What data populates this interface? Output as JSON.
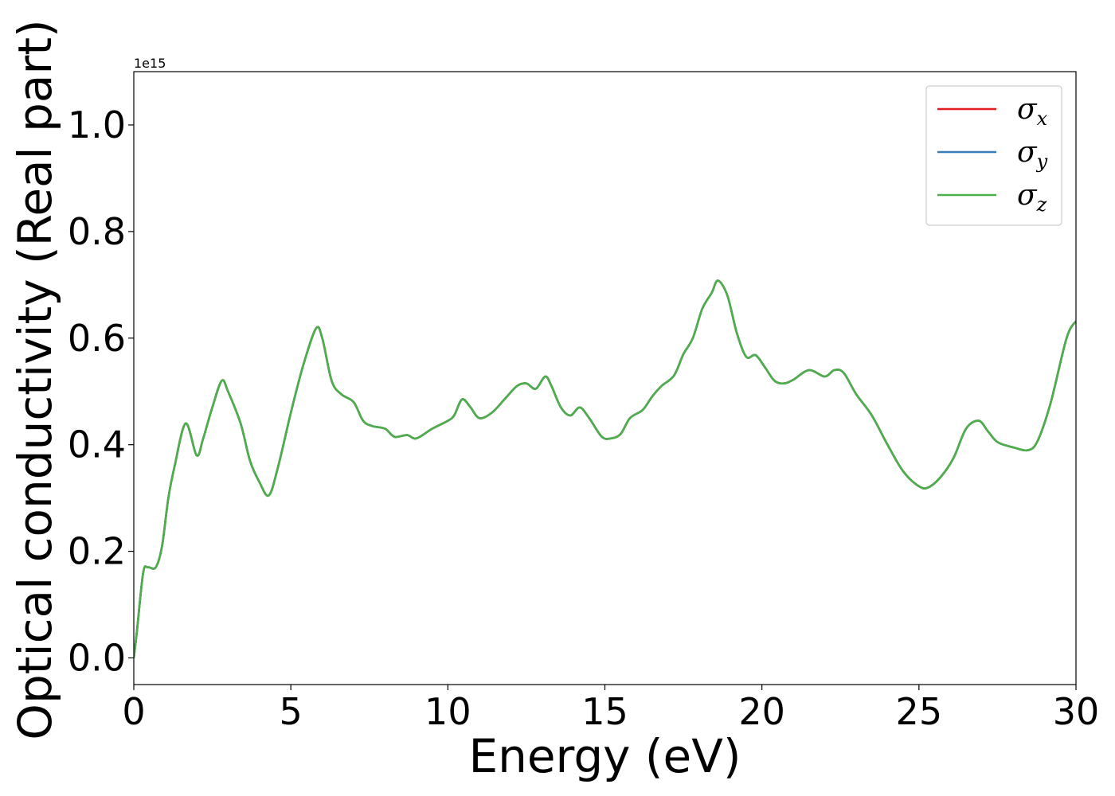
{
  "chart_data": {
    "type": "line",
    "title": "",
    "xlabel": "Energy (eV)",
    "ylabel": "Optical conductivity (Real part)",
    "y_offset_text": "1e15",
    "xlim": [
      0,
      30
    ],
    "ylim": [
      -0.05,
      1.1
    ],
    "y_scale": 1000000000000000.0,
    "x_ticks": [
      0,
      5,
      10,
      15,
      20,
      25,
      30
    ],
    "x_tick_labels": [
      "0",
      "5",
      "10",
      "15",
      "20",
      "25",
      "30"
    ],
    "y_ticks": [
      0.0,
      0.2,
      0.4,
      0.6,
      0.8,
      1.0
    ],
    "y_tick_labels": [
      "0.0",
      "0.2",
      "0.4",
      "0.6",
      "0.8",
      "1.0"
    ],
    "grid": false,
    "legend_position": "top-right",
    "series": [
      {
        "name": "σx",
        "symbol": "σ",
        "subscript": "x",
        "color": "#e41a1c",
        "x": [
          0,
          0.1,
          0.3,
          0.45,
          0.7,
          0.9,
          1.1,
          1.3,
          1.65,
          2.0,
          2.2,
          2.5,
          2.8,
          3.0,
          3.4,
          3.7,
          4.0,
          4.3,
          4.6,
          5.0,
          5.4,
          5.8,
          6.0,
          6.3,
          6.6,
          7.0,
          7.3,
          7.6,
          8.0,
          8.3,
          8.7,
          9.0,
          9.5,
          10.0,
          10.2,
          10.45,
          10.7,
          11.0,
          11.4,
          11.8,
          12.2,
          12.5,
          12.8,
          13.1,
          13.3,
          13.6,
          13.9,
          14.2,
          14.5,
          14.9,
          15.2,
          15.5,
          15.8,
          16.2,
          16.5,
          16.8,
          17.2,
          17.5,
          17.8,
          18.1,
          18.4,
          18.6,
          18.9,
          19.2,
          19.5,
          19.8,
          20.1,
          20.4,
          20.7,
          21.0,
          21.5,
          22.0,
          22.3,
          22.6,
          23.0,
          23.5,
          24.0,
          24.5,
          25.0,
          25.3,
          25.7,
          26.1,
          26.5,
          26.9,
          27.2,
          27.5,
          28.0,
          28.5,
          28.8,
          29.2,
          29.7,
          30.0
        ],
        "y": [
          0.0,
          0.05,
          0.16,
          0.17,
          0.17,
          0.21,
          0.3,
          0.36,
          0.44,
          0.38,
          0.41,
          0.47,
          0.52,
          0.5,
          0.44,
          0.37,
          0.33,
          0.305,
          0.36,
          0.46,
          0.55,
          0.618,
          0.6,
          0.52,
          0.495,
          0.48,
          0.445,
          0.435,
          0.43,
          0.415,
          0.418,
          0.412,
          0.43,
          0.445,
          0.455,
          0.485,
          0.472,
          0.45,
          0.46,
          0.485,
          0.51,
          0.515,
          0.505,
          0.528,
          0.51,
          0.47,
          0.455,
          0.47,
          0.45,
          0.415,
          0.412,
          0.42,
          0.45,
          0.465,
          0.49,
          0.51,
          0.53,
          0.57,
          0.6,
          0.655,
          0.685,
          0.708,
          0.68,
          0.61,
          0.565,
          0.568,
          0.545,
          0.52,
          0.515,
          0.522,
          0.54,
          0.528,
          0.54,
          0.535,
          0.495,
          0.455,
          0.4,
          0.35,
          0.322,
          0.32,
          0.34,
          0.375,
          0.43,
          0.445,
          0.425,
          0.405,
          0.395,
          0.39,
          0.41,
          0.48,
          0.6,
          0.632
        ]
      },
      {
        "name": "σy",
        "symbol": "σ",
        "subscript": "y",
        "color": "#377eb8",
        "x": [
          0,
          0.1,
          0.3,
          0.45,
          0.7,
          0.9,
          1.1,
          1.3,
          1.65,
          2.0,
          2.2,
          2.5,
          2.8,
          3.0,
          3.4,
          3.7,
          4.0,
          4.3,
          4.6,
          5.0,
          5.4,
          5.8,
          6.0,
          6.3,
          6.6,
          7.0,
          7.3,
          7.6,
          8.0,
          8.3,
          8.7,
          9.0,
          9.5,
          10.0,
          10.2,
          10.45,
          10.7,
          11.0,
          11.4,
          11.8,
          12.2,
          12.5,
          12.8,
          13.1,
          13.3,
          13.6,
          13.9,
          14.2,
          14.5,
          14.9,
          15.2,
          15.5,
          15.8,
          16.2,
          16.5,
          16.8,
          17.2,
          17.5,
          17.8,
          18.1,
          18.4,
          18.6,
          18.9,
          19.2,
          19.5,
          19.8,
          20.1,
          20.4,
          20.7,
          21.0,
          21.5,
          22.0,
          22.3,
          22.6,
          23.0,
          23.5,
          24.0,
          24.5,
          25.0,
          25.3,
          25.7,
          26.1,
          26.5,
          26.9,
          27.2,
          27.5,
          28.0,
          28.5,
          28.8,
          29.2,
          29.7,
          30.0
        ],
        "y": [
          0.0,
          0.05,
          0.16,
          0.17,
          0.17,
          0.21,
          0.3,
          0.36,
          0.44,
          0.38,
          0.41,
          0.47,
          0.52,
          0.5,
          0.44,
          0.37,
          0.33,
          0.305,
          0.36,
          0.46,
          0.55,
          0.618,
          0.6,
          0.52,
          0.495,
          0.48,
          0.445,
          0.435,
          0.43,
          0.415,
          0.418,
          0.412,
          0.43,
          0.445,
          0.455,
          0.485,
          0.472,
          0.45,
          0.46,
          0.485,
          0.51,
          0.515,
          0.505,
          0.528,
          0.51,
          0.47,
          0.455,
          0.47,
          0.45,
          0.415,
          0.412,
          0.42,
          0.45,
          0.465,
          0.49,
          0.51,
          0.53,
          0.57,
          0.6,
          0.655,
          0.685,
          0.708,
          0.68,
          0.61,
          0.565,
          0.568,
          0.545,
          0.52,
          0.515,
          0.522,
          0.54,
          0.528,
          0.54,
          0.535,
          0.495,
          0.455,
          0.4,
          0.35,
          0.322,
          0.32,
          0.34,
          0.375,
          0.43,
          0.445,
          0.425,
          0.405,
          0.395,
          0.39,
          0.41,
          0.48,
          0.6,
          0.632
        ]
      },
      {
        "name": "σz",
        "symbol": "σ",
        "subscript": "z",
        "color": "#4daf4a",
        "x": [
          0,
          0.1,
          0.3,
          0.45,
          0.7,
          0.9,
          1.1,
          1.3,
          1.65,
          2.0,
          2.2,
          2.5,
          2.8,
          3.0,
          3.4,
          3.7,
          4.0,
          4.3,
          4.6,
          5.0,
          5.4,
          5.8,
          6.0,
          6.3,
          6.6,
          7.0,
          7.3,
          7.6,
          8.0,
          8.3,
          8.7,
          9.0,
          9.5,
          10.0,
          10.2,
          10.45,
          10.7,
          11.0,
          11.4,
          11.8,
          12.2,
          12.5,
          12.8,
          13.1,
          13.3,
          13.6,
          13.9,
          14.2,
          14.5,
          14.9,
          15.2,
          15.5,
          15.8,
          16.2,
          16.5,
          16.8,
          17.2,
          17.5,
          17.8,
          18.1,
          18.4,
          18.6,
          18.9,
          19.2,
          19.5,
          19.8,
          20.1,
          20.4,
          20.7,
          21.0,
          21.5,
          22.0,
          22.3,
          22.6,
          23.0,
          23.5,
          24.0,
          24.5,
          25.0,
          25.3,
          25.7,
          26.1,
          26.5,
          26.9,
          27.2,
          27.5,
          28.0,
          28.5,
          28.8,
          29.2,
          29.7,
          30.0
        ],
        "y": [
          0.0,
          0.05,
          0.16,
          0.17,
          0.17,
          0.21,
          0.3,
          0.36,
          0.44,
          0.38,
          0.41,
          0.47,
          0.52,
          0.5,
          0.44,
          0.37,
          0.33,
          0.305,
          0.36,
          0.46,
          0.55,
          0.618,
          0.6,
          0.52,
          0.495,
          0.48,
          0.445,
          0.435,
          0.43,
          0.415,
          0.418,
          0.412,
          0.43,
          0.445,
          0.455,
          0.485,
          0.472,
          0.45,
          0.46,
          0.485,
          0.51,
          0.515,
          0.505,
          0.528,
          0.51,
          0.47,
          0.455,
          0.47,
          0.45,
          0.415,
          0.412,
          0.42,
          0.45,
          0.465,
          0.49,
          0.51,
          0.53,
          0.57,
          0.6,
          0.655,
          0.685,
          0.708,
          0.68,
          0.61,
          0.565,
          0.568,
          0.545,
          0.52,
          0.515,
          0.522,
          0.54,
          0.528,
          0.54,
          0.535,
          0.495,
          0.455,
          0.4,
          0.35,
          0.322,
          0.32,
          0.34,
          0.375,
          0.43,
          0.445,
          0.425,
          0.405,
          0.395,
          0.39,
          0.41,
          0.48,
          0.6,
          0.632
        ]
      }
    ]
  }
}
